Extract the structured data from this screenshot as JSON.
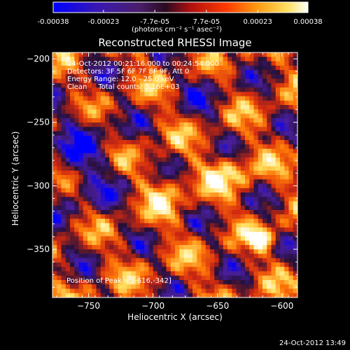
{
  "colorbar": {
    "ticks": [
      "-0.00038",
      "-0.00023",
      "-7.7e-05",
      "7.7e-05",
      "0.00023",
      "0.00038"
    ],
    "tick_values": [
      -0.00038,
      -0.00023,
      -7.7e-05,
      7.7e-05,
      0.00023,
      0.00038
    ],
    "range": [
      -0.00038,
      0.00038
    ],
    "unit_label": "(photons cm⁻² s⁻¹ asec⁻²)"
  },
  "chart_data": {
    "type": "heatmap",
    "title": "Reconstructed RHESSI Image",
    "xlabel": "Heliocentric X (arcsec)",
    "ylabel": "Heliocentric Y (arcsec)",
    "xlim": [
      -778,
      -588
    ],
    "ylim": [
      -388,
      -195
    ],
    "x_ticks": [
      -750,
      -700,
      -650,
      -600
    ],
    "x_tick_labels": [
      "−750",
      "−700",
      "−650",
      "−600"
    ],
    "y_ticks": [
      -200,
      -250,
      -300,
      -350
    ],
    "y_tick_labels": [
      "−200",
      "−250",
      "−300",
      "−350"
    ],
    "peak": {
      "x": -616,
      "y": -342
    },
    "colormap": [
      "#0000ff",
      "#4a1e9a",
      "#24103a",
      "#d42a10",
      "#ff7a08",
      "#ffe060",
      "#ffffff"
    ]
  },
  "annotations": [
    "24-Oct-2012 00:21:16.000 to 00:24:54.000",
    "Detectors: 3F 5F 6F 7F 8F 9F, Att 0",
    "Energy Range: 12.0 - 25.0 keV",
    "Clean     Total counts: 3.16E+03"
  ],
  "peak_label": "Position of Peak = [-616,-342]",
  "timestamp": "24-Oct-2012 13:49"
}
